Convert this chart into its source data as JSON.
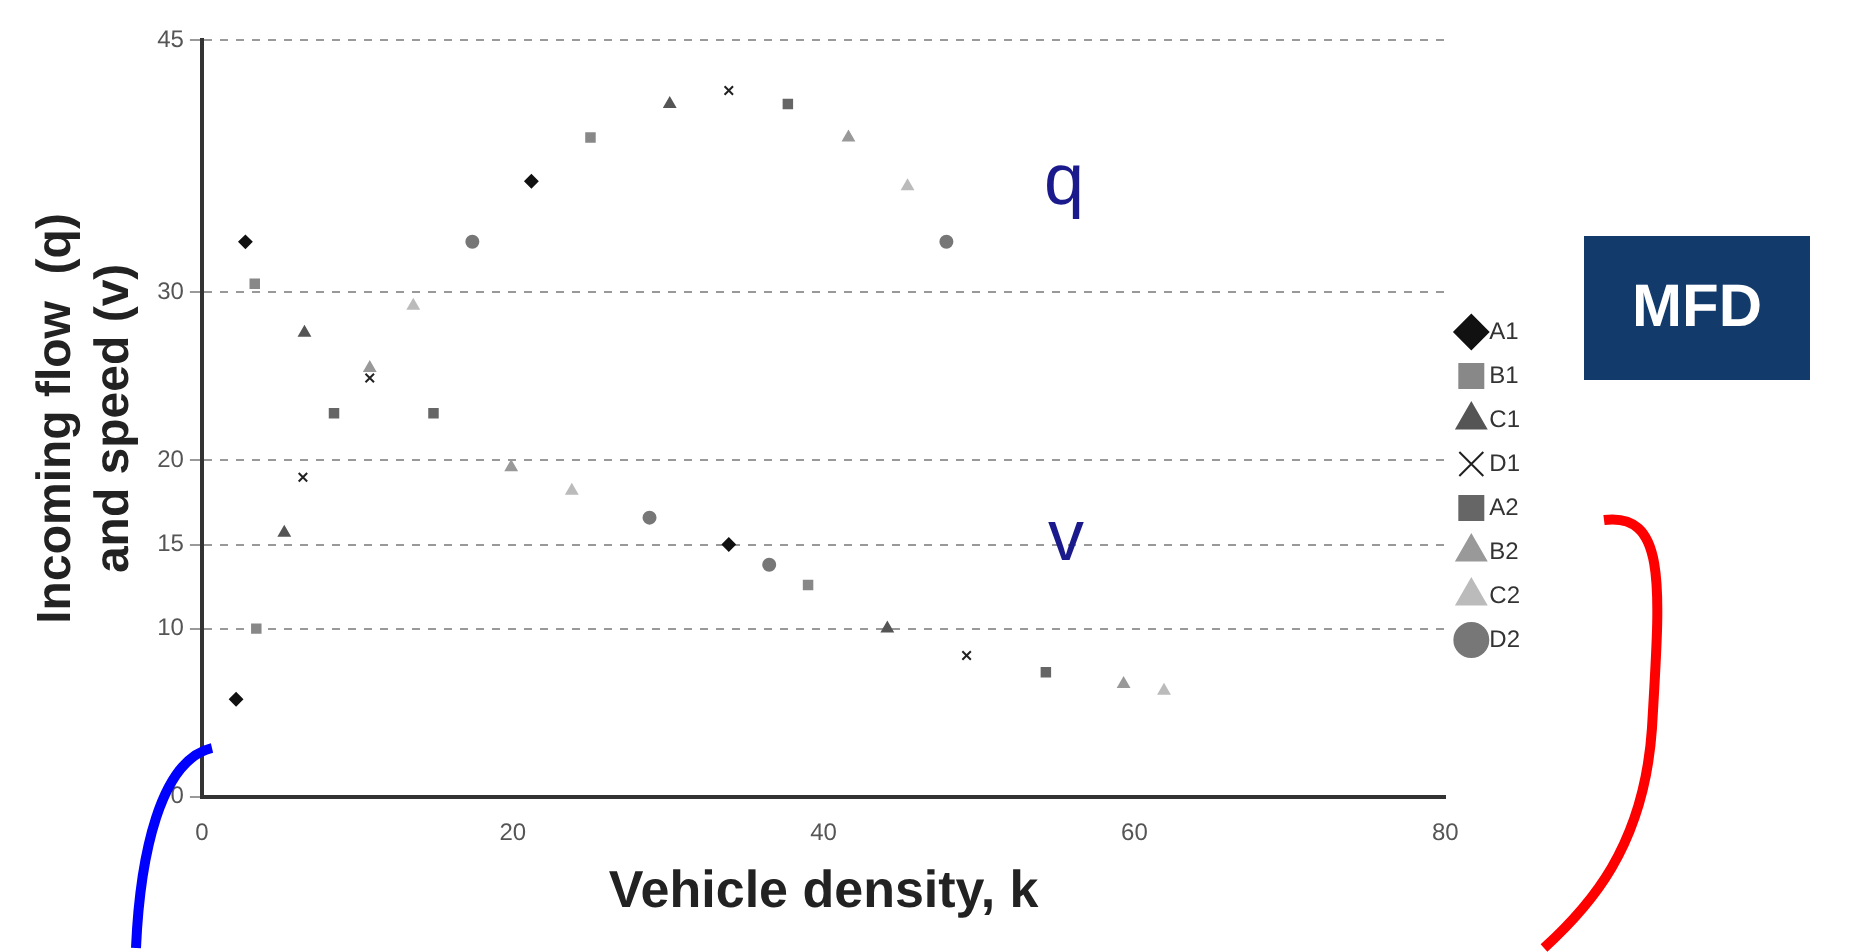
{
  "chart_data": {
    "type": "scatter",
    "xlabel": "Vehicle density, k",
    "ylabel": "Incoming flow  (q)\nand speed (v)",
    "xlim": [
      0,
      80
    ],
    "xticks": [
      0,
      20,
      40,
      60,
      80
    ],
    "ylim": [
      0,
      45
    ],
    "yticks": [
      0,
      10,
      15,
      20,
      30,
      45
    ],
    "grid": "y",
    "legend": "right",
    "series": [
      {
        "name": "A1",
        "color": "#111111",
        "marker": "diamond",
        "x": [
          2.2,
          21.2,
          2.8,
          33.9
        ],
        "values": [
          5.8,
          36.6,
          33,
          15
        ]
      },
      {
        "name": "B1",
        "color": "#888888",
        "marker": "square",
        "x": [
          3.5,
          25,
          3.4,
          39
        ],
        "values": [
          10,
          39.2,
          30.5,
          12.6
        ]
      },
      {
        "name": "C1",
        "color": "#555555",
        "marker": "triangle",
        "x": [
          5.3,
          30.1,
          6.6,
          44.1
        ],
        "values": [
          15.7,
          41.2,
          27.6,
          10
        ]
      },
      {
        "name": "D1",
        "color": "#222222",
        "marker": "cross",
        "x": [
          6.5,
          33.9,
          10.8,
          49.2
        ],
        "values": [
          19,
          42,
          24.9,
          8.4
        ]
      },
      {
        "name": "A2",
        "color": "#666666",
        "marker": "square",
        "x": [
          8.5,
          37.7,
          14.9,
          54.3
        ],
        "values": [
          22.8,
          41.2,
          22.8,
          7.4
        ]
      },
      {
        "name": "B2",
        "color": "#999999",
        "marker": "triangle",
        "x": [
          10.8,
          41.6,
          19.9,
          59.3
        ],
        "values": [
          25.5,
          39.2,
          19.6,
          6.7
        ]
      },
      {
        "name": "C2",
        "color": "#bbbbbb",
        "marker": "triangle",
        "x": [
          13.6,
          45.4,
          23.8,
          61.9
        ],
        "values": [
          29.2,
          36.3,
          18.2,
          6.3
        ]
      },
      {
        "name": "D2",
        "color": "#777777",
        "marker": "circle",
        "x": [
          17.4,
          47.9,
          28.8,
          36.5
        ],
        "values": [
          33,
          33,
          16.6,
          13.8
        ]
      }
    ],
    "annotations": [
      "q",
      "v",
      "MFD"
    ]
  }
}
